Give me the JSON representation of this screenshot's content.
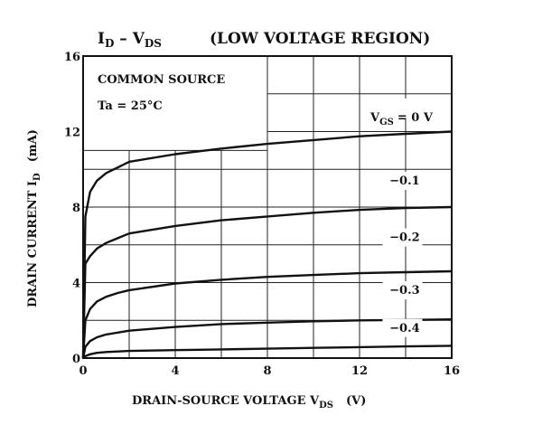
{
  "chart_data": {
    "type": "line",
    "title_main": "I",
    "title_main_sub": "D",
    "title_dash": " – V",
    "title_dash_sub": "DS",
    "title_rest": "(LOW VOLTAGE REGION)",
    "annotation_1": "COMMON SOURCE",
    "annotation_2": "Ta = 25°C",
    "xlabel_main": "DRAIN-SOURCE VOLTAGE  V",
    "xlabel_sub": "DS",
    "xlabel_unit": "(V)",
    "ylabel_main": "DRAIN CURRENT  I",
    "ylabel_sub": "D",
    "ylabel_unit": "(mA)",
    "xlim": [
      0,
      16
    ],
    "ylim": [
      0,
      16
    ],
    "xticks": [
      "0",
      "4",
      "8",
      "12",
      "16"
    ],
    "yticks": [
      "0",
      "4",
      "8",
      "12",
      "16"
    ],
    "grid": true,
    "legend_heading": "V",
    "legend_heading_sub": "GS",
    "legend_heading_value": "= 0 V",
    "series": [
      {
        "name": "= 0 V",
        "x": [
          0,
          0.1,
          0.3,
          0.6,
          1,
          1.5,
          2,
          4,
          6,
          8,
          10,
          12,
          14,
          16
        ],
        "y": [
          0,
          7.5,
          8.8,
          9.4,
          9.8,
          10.1,
          10.4,
          10.8,
          11.1,
          11.35,
          11.55,
          11.75,
          11.88,
          12.0
        ]
      },
      {
        "name": "−0.1",
        "x": [
          0,
          0.1,
          0.3,
          0.6,
          1,
          1.5,
          2,
          4,
          6,
          8,
          10,
          12,
          14,
          16
        ],
        "y": [
          0,
          5.0,
          5.4,
          5.8,
          6.1,
          6.35,
          6.6,
          7.0,
          7.3,
          7.5,
          7.7,
          7.85,
          7.95,
          8.0
        ]
      },
      {
        "name": "−0.2",
        "x": [
          0,
          0.1,
          0.3,
          0.6,
          1,
          1.5,
          2,
          4,
          6,
          8,
          10,
          12,
          14,
          16
        ],
        "y": [
          0,
          2.0,
          2.6,
          3.0,
          3.25,
          3.45,
          3.6,
          3.95,
          4.15,
          4.3,
          4.4,
          4.5,
          4.55,
          4.6
        ]
      },
      {
        "name": "−0.3",
        "x": [
          0,
          0.1,
          0.3,
          0.6,
          1,
          1.5,
          2,
          4,
          6,
          8,
          10,
          12,
          14,
          16
        ],
        "y": [
          0,
          0.6,
          0.9,
          1.1,
          1.25,
          1.35,
          1.45,
          1.65,
          1.8,
          1.88,
          1.95,
          2.0,
          2.02,
          2.05
        ]
      },
      {
        "name": "−0.4",
        "x": [
          0,
          0.1,
          0.3,
          0.6,
          1,
          1.5,
          2,
          4,
          6,
          8,
          10,
          12,
          14,
          16
        ],
        "y": [
          0,
          0.1,
          0.2,
          0.28,
          0.32,
          0.35,
          0.38,
          0.42,
          0.46,
          0.5,
          0.54,
          0.58,
          0.62,
          0.65
        ]
      }
    ]
  }
}
